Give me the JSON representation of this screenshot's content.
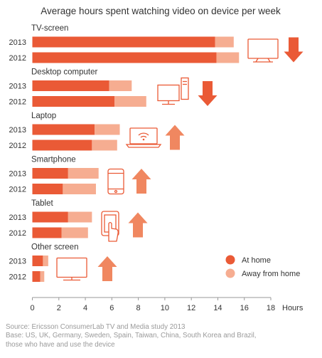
{
  "chart_data": {
    "type": "bar",
    "orientation": "horizontal",
    "stacked": true,
    "title": "Average hours spent watching video on device per week",
    "xlabel": "Hours",
    "xlim": [
      0,
      18
    ],
    "ticks": [
      0,
      2,
      4,
      6,
      8,
      10,
      12,
      14,
      16,
      18
    ],
    "colors": {
      "at_home": "#ea5a36",
      "away": "#f6ad91",
      "arrow": "#ea5a36",
      "arrow_up": "#f08760",
      "icon": "#ea5a36",
      "axis": "#999999"
    },
    "series": [
      {
        "name": "At home",
        "key": "at_home"
      },
      {
        "name": "Away from home",
        "key": "away"
      }
    ],
    "groups": [
      {
        "label": "TV-screen",
        "icon": "tv-icon",
        "trend": "down",
        "rows": [
          {
            "year": "2013",
            "at_home": 13.8,
            "away": 1.4
          },
          {
            "year": "2012",
            "at_home": 13.9,
            "away": 1.7
          }
        ]
      },
      {
        "label": "Desktop computer",
        "icon": "desktop-computer-icon",
        "trend": "down",
        "rows": [
          {
            "year": "2013",
            "at_home": 5.8,
            "away": 1.7
          },
          {
            "year": "2012",
            "at_home": 6.2,
            "away": 2.4
          }
        ]
      },
      {
        "label": "Laptop",
        "icon": "laptop-icon",
        "trend": "up",
        "rows": [
          {
            "year": "2013",
            "at_home": 4.7,
            "away": 1.9
          },
          {
            "year": "2012",
            "at_home": 4.5,
            "away": 1.9
          }
        ]
      },
      {
        "label": "Smartphone",
        "icon": "smartphone-icon",
        "trend": "up",
        "rows": [
          {
            "year": "2013",
            "at_home": 2.7,
            "away": 2.3
          },
          {
            "year": "2012",
            "at_home": 2.3,
            "away": 2.5
          }
        ]
      },
      {
        "label": "Tablet",
        "icon": "tablet-icon",
        "trend": "up",
        "rows": [
          {
            "year": "2013",
            "at_home": 2.7,
            "away": 1.8
          },
          {
            "year": "2012",
            "at_home": 2.2,
            "away": 2.0
          }
        ]
      },
      {
        "label": "Other screen",
        "icon": "monitor-icon",
        "trend": "up",
        "rows": [
          {
            "year": "2013",
            "at_home": 0.8,
            "away": 0.4
          },
          {
            "year": "2012",
            "at_home": 0.6,
            "away": 0.3
          }
        ]
      }
    ],
    "legend": {
      "position": "right"
    }
  },
  "footer": {
    "source": "Source: Ericsson ConsumerLab TV and Media study 2013",
    "base_line1": "Base: US, UK, Germany, Sweden, Spain, Taiwan, China, South Korea and Brazil,",
    "base_line2": "those who have and use the device"
  }
}
